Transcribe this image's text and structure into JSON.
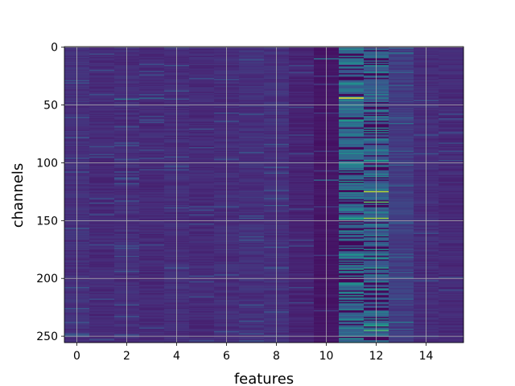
{
  "chart_data": {
    "type": "heatmap",
    "colormap": "viridis",
    "xlabel": "features",
    "ylabel": "channels",
    "x_categories": [
      0,
      1,
      2,
      3,
      4,
      5,
      6,
      7,
      8,
      9,
      10,
      11,
      12,
      13,
      14,
      15
    ],
    "y_range": [
      0,
      255
    ],
    "y_inverted": true,
    "xlim": [
      -0.5,
      15.5
    ],
    "ylim": [
      255.5,
      -0.5
    ],
    "xticks": [
      "0",
      "2",
      "4",
      "6",
      "8",
      "10",
      "12",
      "14"
    ],
    "yticks": [
      "0",
      "50",
      "100",
      "150",
      "200",
      "250"
    ],
    "grid": true,
    "baseline_value": 0.1,
    "column_levels": [
      0.14,
      0.12,
      0.13,
      0.12,
      0.13,
      0.12,
      0.13,
      0.14,
      0.14,
      0.1,
      0.06,
      0.34,
      0.3,
      0.18,
      0.13,
      0.12
    ],
    "highlights": [
      {
        "feature": 11,
        "channel": 44,
        "value": 1.0
      },
      {
        "feature": 11,
        "channel": 63,
        "value": 0.55
      },
      {
        "feature": 11,
        "channel": 92,
        "value": 0.5
      },
      {
        "feature": 11,
        "channel": 148,
        "value": 0.6
      },
      {
        "feature": 11,
        "channel": 192,
        "value": 0.55
      },
      {
        "feature": 11,
        "channel": 236,
        "value": 0.5
      },
      {
        "feature": 12,
        "channel": 44,
        "value": 0.45
      },
      {
        "feature": 12,
        "channel": 98,
        "value": 0.55
      },
      {
        "feature": 12,
        "channel": 125,
        "value": 0.9
      },
      {
        "feature": 12,
        "channel": 134,
        "value": 0.75
      },
      {
        "feature": 12,
        "channel": 148,
        "value": 0.85
      },
      {
        "feature": 12,
        "channel": 183,
        "value": 0.5
      },
      {
        "feature": 12,
        "channel": 191,
        "value": 0.55
      },
      {
        "feature": 12,
        "channel": 241,
        "value": 0.6
      },
      {
        "feature": 12,
        "channel": 245,
        "value": 0.7
      },
      {
        "feature": 2,
        "channel": 45,
        "value": 0.4
      },
      {
        "feature": 3,
        "channel": 44,
        "value": 0.35
      },
      {
        "feature": 13,
        "channel": 5,
        "value": 0.4
      },
      {
        "feature": 13,
        "channel": 238,
        "value": 0.4
      },
      {
        "feature": 13,
        "channel": 66,
        "value": 0.35
      },
      {
        "feature": 10,
        "channel": 10,
        "value": 0.4
      },
      {
        "feature": 10,
        "channel": 115,
        "value": 0.35
      }
    ]
  }
}
